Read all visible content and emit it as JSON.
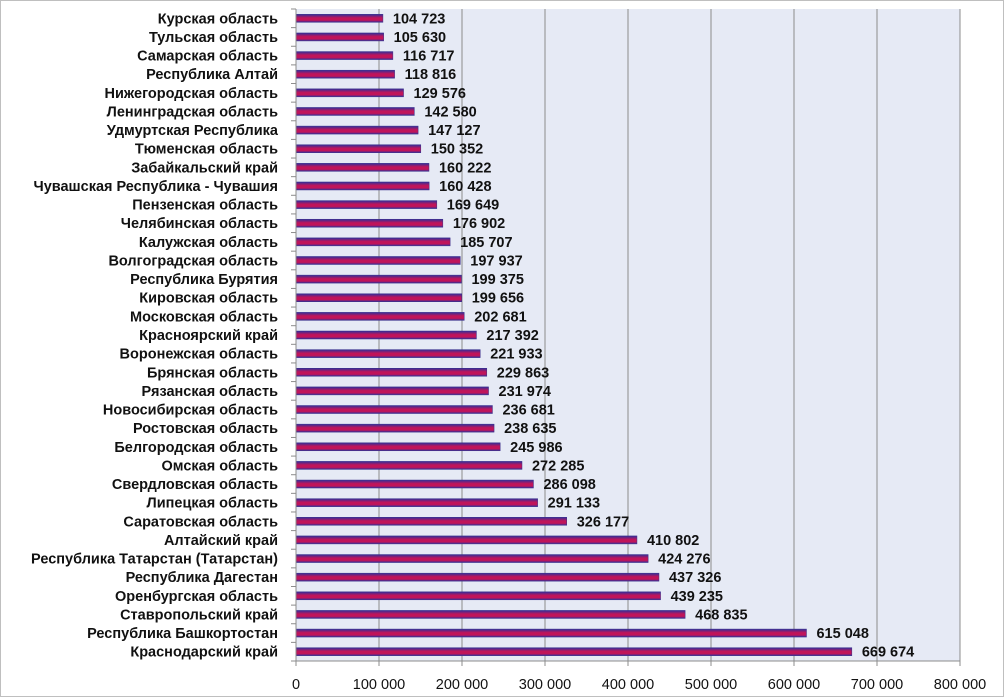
{
  "chart_data": {
    "type": "bar",
    "orientation": "horizontal",
    "categories": [
      "Курская область",
      "Тульская область",
      "Самарская область",
      "Республика Алтай",
      "Нижегородская область",
      "Ленинградская область",
      "Удмуртская Республика",
      "Тюменская область",
      "Забайкальский край",
      "Чувашская Республика - Чувашия",
      "Пензенская область",
      "Челябинская область",
      "Калужская область",
      "Волгоградская область",
      "Республика Бурятия",
      "Кировская область",
      "Московская область",
      "Красноярский край",
      "Воронежская область",
      "Брянская область",
      "Рязанская область",
      "Новосибирская область",
      "Ростовская область",
      "Белгородская область",
      "Омская область",
      "Свердловская область",
      "Липецкая область",
      "Саратовская область",
      "Алтайский край",
      "Республика Татарстан (Татарстан)",
      "Республика Дагестан",
      "Оренбургская область",
      "Ставропольский край",
      "Республика Башкортостан",
      "Краснодарский край"
    ],
    "values": [
      104723,
      105630,
      116717,
      118816,
      129576,
      142580,
      147127,
      150352,
      160222,
      160428,
      169649,
      176902,
      185707,
      197937,
      199375,
      199656,
      202681,
      217392,
      221933,
      229863,
      231974,
      236681,
      238635,
      245986,
      272285,
      286098,
      291133,
      326177,
      410802,
      424276,
      437326,
      439235,
      468835,
      615048,
      669674
    ],
    "value_labels": [
      "104 723",
      "105 630",
      "116 717",
      "118 816",
      "129 576",
      "142 580",
      "147 127",
      "150 352",
      "160 222",
      "160 428",
      "169 649",
      "176 902",
      "185 707",
      "197 937",
      "199 375",
      "199 656",
      "202 681",
      "217 392",
      "221 933",
      "229 863",
      "231 974",
      "236 681",
      "238 635",
      "245 986",
      "272 285",
      "286 098",
      "291 133",
      "326 177",
      "410 802",
      "424 276",
      "437 326",
      "439 235",
      "468 835",
      "615 048",
      "669 674"
    ],
    "xlim": [
      0,
      800000
    ],
    "x_ticks": [
      0,
      100000,
      200000,
      300000,
      400000,
      500000,
      600000,
      700000,
      800000
    ],
    "x_tick_labels": [
      "0",
      "100 000",
      "200 000",
      "300 000",
      "400 000",
      "500 000",
      "600 000",
      "700 000",
      "800 000"
    ],
    "title": "",
    "xlabel": "",
    "ylabel": "",
    "grid": "vertical",
    "legend": "none",
    "colors": {
      "bar_top": "#2e2f9c",
      "bar_bottom": "#c0145a",
      "plot_background": "#e6eaf5",
      "gridline": "#8c8c8c",
      "text": "#111111"
    }
  }
}
